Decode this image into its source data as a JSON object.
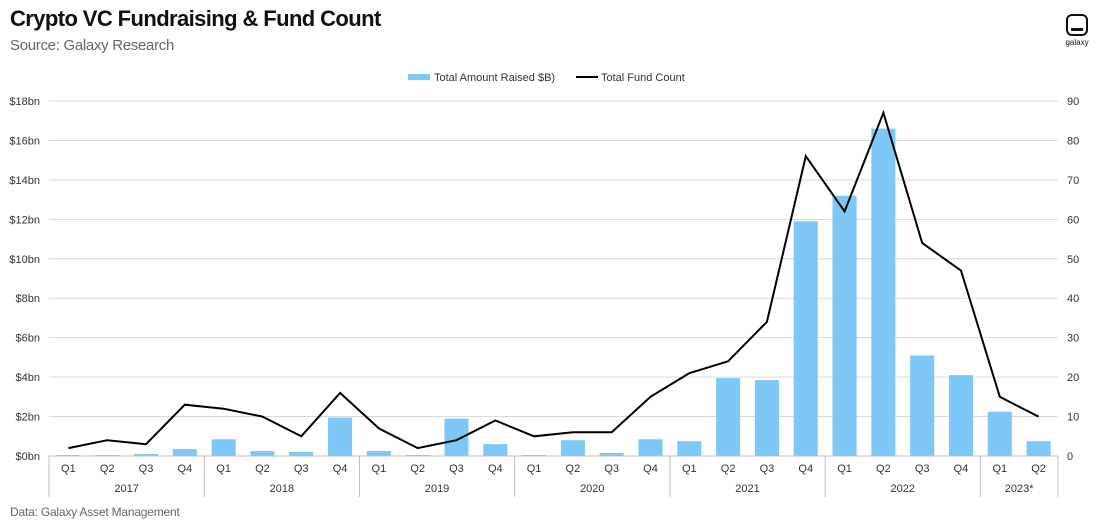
{
  "header": {
    "title": "Crypto VC Fundraising & Fund Count",
    "subtitle": "Source: Galaxy Research"
  },
  "footer": {
    "note": "Data: Galaxy Asset Management"
  },
  "logo": {
    "word": "galaxy"
  },
  "colors": {
    "bar": "#7ec8f7",
    "line": "#000000",
    "grid": "#d9d9d9",
    "axis": "#bfbfbf"
  },
  "chart_data": {
    "type": "bar",
    "title": "Crypto VC Fundraising & Fund Count",
    "categories": [
      "Q1",
      "Q2",
      "Q3",
      "Q4",
      "Q1",
      "Q2",
      "Q3",
      "Q4",
      "Q1",
      "Q2",
      "Q3",
      "Q4",
      "Q1",
      "Q2",
      "Q3",
      "Q4",
      "Q1",
      "Q2",
      "Q3",
      "Q4",
      "Q1",
      "Q2",
      "Q3",
      "Q4",
      "Q1",
      "Q2"
    ],
    "year_groups": [
      {
        "label": "2017",
        "count": 4
      },
      {
        "label": "2018",
        "count": 4
      },
      {
        "label": "2019",
        "count": 4
      },
      {
        "label": "2020",
        "count": 4
      },
      {
        "label": "2021",
        "count": 4
      },
      {
        "label": "2022",
        "count": 4
      },
      {
        "label": "2023*",
        "count": 2
      }
    ],
    "series": [
      {
        "name": "Total Amount Raised $B)",
        "type": "bar",
        "axis": "left",
        "values": [
          0.05,
          0.05,
          0.1,
          0.35,
          0.85,
          0.25,
          0.2,
          1.95,
          0.25,
          0.05,
          1.9,
          0.6,
          0.05,
          0.8,
          0.15,
          0.85,
          0.75,
          3.95,
          3.85,
          11.9,
          13.2,
          16.6,
          5.1,
          4.1,
          2.25,
          0.75
        ]
      },
      {
        "name": "Total Fund Count",
        "type": "line",
        "axis": "right",
        "values": [
          2,
          4,
          3,
          13,
          12,
          10,
          5,
          16,
          7,
          2,
          4,
          9,
          5,
          6,
          6,
          15,
          21,
          24,
          34,
          76,
          62,
          87,
          54,
          47,
          15,
          10
        ]
      }
    ],
    "y_left": {
      "ylim": [
        0,
        18
      ],
      "ticks": [
        "$0bn",
        "$2bn",
        "$4bn",
        "$6bn",
        "$8bn",
        "$10bn",
        "$12bn",
        "$14bn",
        "$16bn",
        "$18bn"
      ]
    },
    "y_right": {
      "ylim": [
        0,
        90
      ],
      "ticks": [
        "0",
        "10",
        "20",
        "30",
        "40",
        "50",
        "60",
        "70",
        "80",
        "90"
      ]
    },
    "grid": true,
    "legend": "top-center"
  }
}
